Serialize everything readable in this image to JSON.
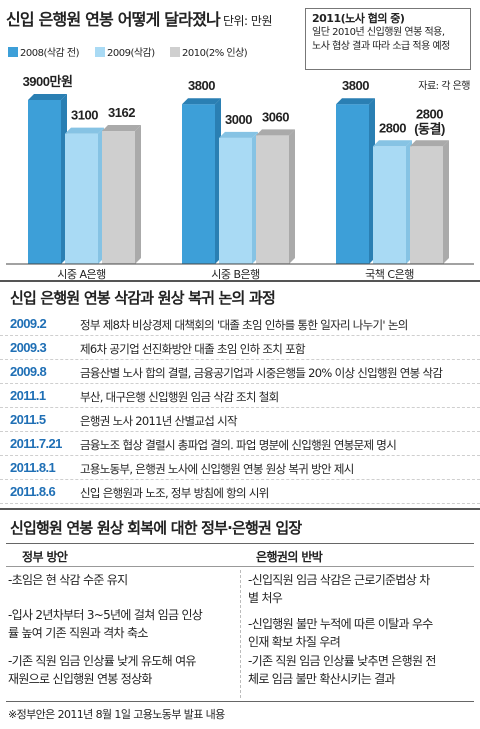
{
  "chart_data": {
    "type": "bar",
    "title": "신입 은행원 연봉 어떻게 달라졌나",
    "unit": "단위: 만원",
    "categories": [
      "시중 A은행",
      "시중 B은행",
      "국책 C은행"
    ],
    "series": [
      {
        "name": "2008(삭감 전)",
        "color": "#3d9fd8",
        "values": [
          3900,
          3800,
          3800
        ],
        "labels": [
          "3900만원",
          "3800",
          "3800"
        ]
      },
      {
        "name": "2009(삭감)",
        "color": "#a9daf4",
        "values": [
          3100,
          3000,
          2800
        ],
        "labels": [
          "3100",
          "3000",
          "2800"
        ]
      },
      {
        "name": "2010(2% 인상)",
        "color": "#cfcfcf",
        "values": [
          3162,
          3060,
          2800
        ],
        "labels": [
          "3162",
          "3060",
          "2800\n(동결)"
        ]
      }
    ],
    "ylim": [
      0,
      3900
    ]
  },
  "note": {
    "title": "2011(노사 협의 중)",
    "lines": [
      "일단 2010년 신입행원 연봉 적용,",
      "노사 협상 결과 따라 소급 적용 예정"
    ]
  },
  "source": "자료: 각 은행",
  "timeline": {
    "title": "신입 은행원 연봉 삭감과 원상 복귀 논의 과정",
    "items": [
      {
        "date": "2009.2",
        "text": "정부 제8차 비상경제 대책회의 '대졸 초임 인하를 통한 일자리 나누기' 논의"
      },
      {
        "date": "2009.3",
        "text": "제6차 공기업 선진화방안 대졸 초임 인하 조치 포함"
      },
      {
        "date": "2009.8",
        "text": "금융산별 노사 합의 결렬, 금융공기업과 시중은행들 20% 이상 신입행원 연봉 삭감"
      },
      {
        "date": "2011.1",
        "text": "부산, 대구은행 신입행원 임금 삭감 조치 철회"
      },
      {
        "date": "2011.5",
        "text": "은행권 노사 2011년 산별교섭 시작"
      },
      {
        "date": "2011.7.21",
        "text": "금융노조 협상 결렬시 총파업 결의. 파업 명분에 신입행원 연봉문제 명시"
      },
      {
        "date": "2011.8.1",
        "text": "고용노동부, 은행권 노사에 신입행원 연봉 원상 복귀 방안 제시"
      },
      {
        "date": "2011.8.6",
        "text": "신입 은행원과 노조, 정부 방침에 항의 시위"
      }
    ]
  },
  "positions": {
    "title": "신입행원 연봉 원상 회복에 대한 정부·은행권 입장",
    "gov_head": "정부 방안",
    "bank_head": "은행권의 반박",
    "gov_items": [
      [
        "-초임은 현 삭감 수준 유지"
      ],
      [
        "-입사 2년차부터 3~5년에 걸쳐 임금 인상",
        "률 높여 기존 직원과 격차 축소"
      ],
      [
        "-기존 직원 임금 인상률 낮게 유도해 여유",
        "재원으로 신입행원 연봉 정상화"
      ]
    ],
    "bank_items": [
      [
        "-신입직원 임금 삭감은 근로기준법상 차",
        "별 처우"
      ],
      [
        "-신입행원 불만 누적에 따른 이탈과 우수",
        "인재 확보 차질 우려"
      ],
      [
        "-기존 직원 임금 인상률 낮추면 은행원 전",
        "체로 임금 불만 확산시키는 결과"
      ]
    ]
  },
  "footnote": "※정부안은 2011년 8월 1일 고용노동부 발표 내용"
}
